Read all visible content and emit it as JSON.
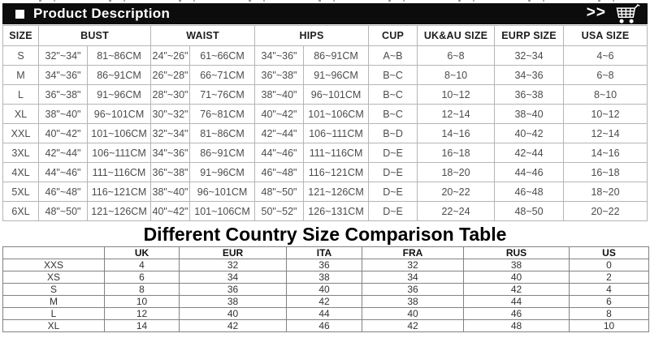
{
  "colors": {
    "bar_background": "#0c0c0c",
    "bar_text": "#ffffff",
    "size_table_border": "#b5b5b5",
    "size_table_text": "#4c4c4c",
    "comparison_table_border": "#828282",
    "comparison_table_text": "#333333"
  },
  "top_bar": {
    "bullet_icon": "square-bullet",
    "title": "Product Description",
    "chevrons": ">>",
    "cart_icon": "shopping-cart"
  },
  "size_chart": {
    "header": [
      {
        "label": "SIZE",
        "span": 1
      },
      {
        "label": "BUST",
        "span": 2
      },
      {
        "label": "WAIST",
        "span": 2
      },
      {
        "label": "HIPS",
        "span": 2
      },
      {
        "label": "CUP",
        "span": 1
      },
      {
        "label": "UK&AU SIZE",
        "span": 1
      },
      {
        "label": "EURP SIZE",
        "span": 1
      },
      {
        "label": "USA SIZE",
        "span": 1
      }
    ],
    "rows": [
      [
        "S",
        "32\"~34\"",
        "81~86CM",
        "24\"~26\"",
        "61~66CM",
        "34\"~36\"",
        "86~91CM",
        "A~B",
        "6~8",
        "32~34",
        "4~6"
      ],
      [
        "M",
        "34\"~36\"",
        "86~91CM",
        "26\"~28\"",
        "66~71CM",
        "36\"~38\"",
        "91~96CM",
        "B~C",
        "8~10",
        "34~36",
        "6~8"
      ],
      [
        "L",
        "36\"~38\"",
        "91~96CM",
        "28\"~30\"",
        "71~76CM",
        "38\"~40\"",
        "96~101CM",
        "B~C",
        "10~12",
        "36~38",
        "8~10"
      ],
      [
        "XL",
        "38\"~40\"",
        "96~101CM",
        "30\"~32\"",
        "76~81CM",
        "40\"~42\"",
        "101~106CM",
        "B~C",
        "12~14",
        "38~40",
        "10~12"
      ],
      [
        "XXL",
        "40\"~42\"",
        "101~106CM",
        "32\"~34\"",
        "81~86CM",
        "42\"~44\"",
        "106~111CM",
        "B~D",
        "14~16",
        "40~42",
        "12~14"
      ],
      [
        "3XL",
        "42\"~44\"",
        "106~111CM",
        "34\"~36\"",
        "86~91CM",
        "44\"~46\"",
        "111~116CM",
        "D~E",
        "16~18",
        "42~44",
        "14~16"
      ],
      [
        "4XL",
        "44\"~46\"",
        "111~116CM",
        "36\"~38\"",
        "91~96CM",
        "46\"~48\"",
        "116~121CM",
        "D~E",
        "18~20",
        "44~46",
        "16~18"
      ],
      [
        "5XL",
        "46\"~48\"",
        "116~121CM",
        "38\"~40\"",
        "96~101CM",
        "48\"~50\"",
        "121~126CM",
        "D~E",
        "20~22",
        "46~48",
        "18~20"
      ],
      [
        "6XL",
        "48\"~50\"",
        "121~126CM",
        "40\"~42\"",
        "101~106CM",
        "50\"~52\"",
        "126~131CM",
        "D~E",
        "22~24",
        "48~50",
        "20~22"
      ]
    ]
  },
  "comparison": {
    "title": "Different Country Size Comparison Table",
    "header": [
      "",
      "UK",
      "EUR",
      "ITA",
      "FRA",
      "RUS",
      "US"
    ],
    "rows": [
      [
        "XXS",
        "4",
        "32",
        "36",
        "32",
        "38",
        "0"
      ],
      [
        "XS",
        "6",
        "34",
        "38",
        "34",
        "40",
        "2"
      ],
      [
        "S",
        "8",
        "36",
        "40",
        "36",
        "42",
        "4"
      ],
      [
        "M",
        "10",
        "38",
        "42",
        "38",
        "44",
        "6"
      ],
      [
        "L",
        "12",
        "40",
        "44",
        "40",
        "46",
        "8"
      ],
      [
        "XL",
        "14",
        "42",
        "46",
        "42",
        "48",
        "10"
      ]
    ]
  }
}
